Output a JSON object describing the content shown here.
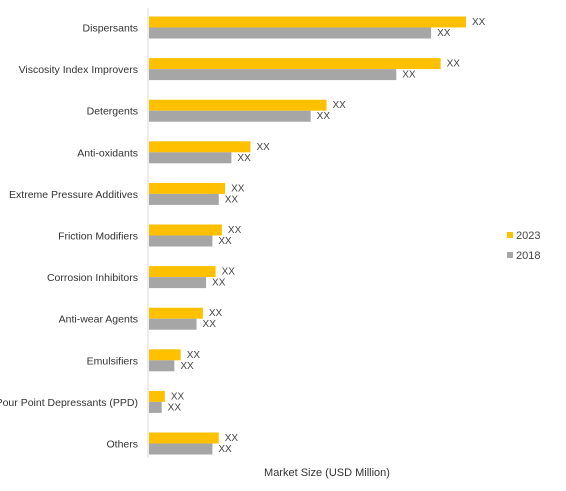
{
  "chart_data": {
    "type": "bar",
    "orientation": "horizontal",
    "categories": [
      "Dispersants",
      "Viscosity Index Improvers",
      "Detergents",
      "Anti-oxidants",
      "Extreme Pressure Additives",
      "Friction Modifiers",
      "Corrosion Inhibitors",
      "Anti-wear Agents",
      "Emulsifiers",
      "Pour Point Depressants (PPD)",
      "Others"
    ],
    "series": [
      {
        "name": "2023",
        "color": "#FFC000",
        "values": [
          100,
          92,
          56,
          32,
          24,
          23,
          21,
          17,
          10,
          5,
          22
        ],
        "value_labels": [
          "XX",
          "XX",
          "XX",
          "XX",
          "XX",
          "XX",
          "XX",
          "XX",
          "XX",
          "XX",
          "XX"
        ]
      },
      {
        "name": "2018",
        "color": "#A6A6A6",
        "values": [
          89,
          78,
          51,
          26,
          22,
          20,
          18,
          15,
          8,
          4,
          20
        ],
        "value_labels": [
          "XX",
          "XX",
          "XX",
          "XX",
          "XX",
          "XX",
          "XX",
          "XX",
          "XX",
          "XX",
          "XX"
        ]
      }
    ],
    "title": "",
    "xlabel": "Market Size (USD Million)",
    "ylabel": "",
    "xlim": [
      0,
      100
    ],
    "grid": false,
    "legend_position": "right"
  }
}
